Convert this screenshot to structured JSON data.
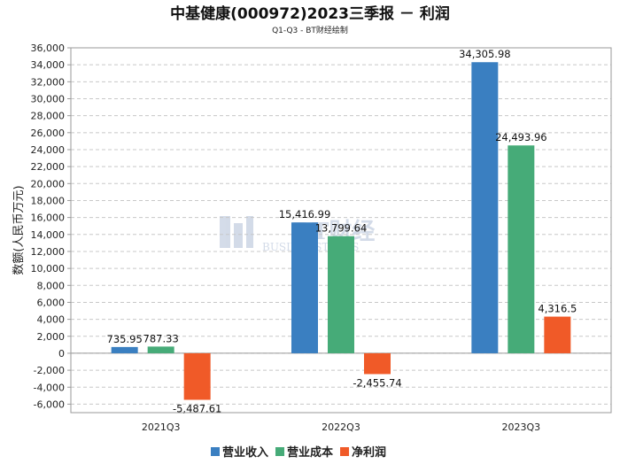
{
  "chart_data": {
    "type": "bar",
    "title": "中基健康(000972)2023三季报 － 利润",
    "subtitle": "Q1-Q3 - BT财经绘制",
    "ylabel": "数额(人民币万元)",
    "xlabel": "",
    "categories": [
      "2021Q3",
      "2022Q3",
      "2023Q3"
    ],
    "ylim": [
      -7000,
      36000
    ],
    "yticks": [
      -6000,
      -4000,
      -2000,
      0,
      2000,
      4000,
      6000,
      8000,
      10000,
      12000,
      14000,
      16000,
      18000,
      20000,
      22000,
      24000,
      26000,
      28000,
      30000,
      32000,
      34000,
      36000
    ],
    "ytick_labels": [
      "-6,000",
      "-4,000",
      "-2,000",
      "0",
      "2,000",
      "4,000",
      "6,000",
      "8,000",
      "10,000",
      "12,000",
      "14,000",
      "16,000",
      "18,000",
      "20,000",
      "22,000",
      "24,000",
      "26,000",
      "28,000",
      "30,000",
      "32,000",
      "34,000",
      "36,000"
    ],
    "grid": true,
    "legend_position": "bottom",
    "series": [
      {
        "name": "营业收入",
        "color": "#3a7fc1",
        "values": [
          735.95,
          15416.99,
          34305.98
        ],
        "labels": [
          "735.95",
          "15,416.99",
          "34,305.98"
        ]
      },
      {
        "name": "营业成本",
        "color": "#46ab78",
        "values": [
          787.33,
          13799.64,
          24493.96
        ],
        "labels": [
          "787.33",
          "13,799.64",
          "24,493.96"
        ]
      },
      {
        "name": "净利润",
        "color": "#f05a28",
        "values": [
          -5487.61,
          -2455.74,
          4316.5
        ],
        "labels": [
          "-5,487.61",
          "-2,455.74",
          "4,316.5"
        ]
      }
    ]
  },
  "watermark": {
    "brand": "BT财经",
    "latin": "BUSINESSTIMES"
  }
}
